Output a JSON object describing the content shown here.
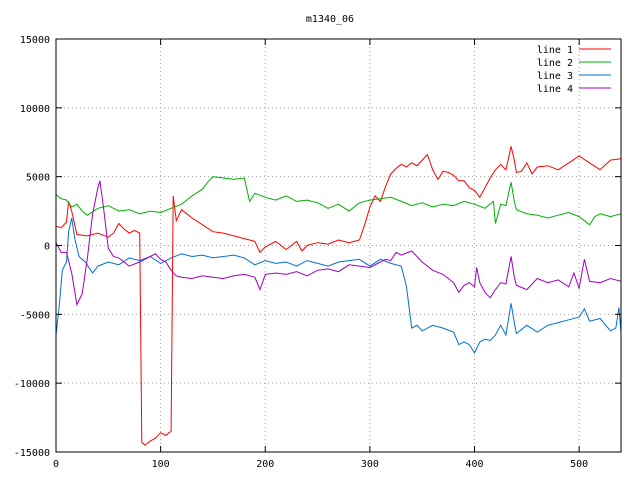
{
  "chart_data": {
    "type": "line",
    "title": "m1340_06",
    "xlabel": "",
    "ylabel": "",
    "xlim": [
      0,
      540
    ],
    "ylim": [
      -15000,
      15000
    ],
    "x_ticks": [
      0,
      100,
      200,
      300,
      400,
      500
    ],
    "y_ticks": [
      -15000,
      -10000,
      -5000,
      0,
      5000,
      10000,
      15000
    ],
    "grid": true,
    "legend_position": "top-right",
    "series": [
      {
        "name": "line 1",
        "color": "#ff0000",
        "points": [
          [
            0,
            1400
          ],
          [
            5,
            1300
          ],
          [
            10,
            1700
          ],
          [
            12,
            3200
          ],
          [
            15,
            2500
          ],
          [
            20,
            800
          ],
          [
            30,
            700
          ],
          [
            40,
            900
          ],
          [
            50,
            600
          ],
          [
            55,
            900
          ],
          [
            60,
            1600
          ],
          [
            65,
            1200
          ],
          [
            70,
            900
          ],
          [
            75,
            1100
          ],
          [
            80,
            900
          ],
          [
            82,
            -14300
          ],
          [
            85,
            -14500
          ],
          [
            90,
            -14200
          ],
          [
            95,
            -14000
          ],
          [
            100,
            -13600
          ],
          [
            105,
            -13800
          ],
          [
            108,
            -13600
          ],
          [
            110,
            -13500
          ],
          [
            112,
            3600
          ],
          [
            115,
            1800
          ],
          [
            120,
            2600
          ],
          [
            125,
            2300
          ],
          [
            130,
            2000
          ],
          [
            140,
            1500
          ],
          [
            150,
            1000
          ],
          [
            160,
            900
          ],
          [
            170,
            700
          ],
          [
            180,
            500
          ],
          [
            190,
            300
          ],
          [
            195,
            -500
          ],
          [
            200,
            -100
          ],
          [
            210,
            300
          ],
          [
            220,
            -300
          ],
          [
            230,
            300
          ],
          [
            235,
            -400
          ],
          [
            240,
            0
          ],
          [
            250,
            200
          ],
          [
            260,
            100
          ],
          [
            270,
            400
          ],
          [
            280,
            200
          ],
          [
            290,
            400
          ],
          [
            295,
            1500
          ],
          [
            300,
            2800
          ],
          [
            305,
            3600
          ],
          [
            310,
            3200
          ],
          [
            315,
            4300
          ],
          [
            320,
            5200
          ],
          [
            325,
            5600
          ],
          [
            330,
            5900
          ],
          [
            335,
            5700
          ],
          [
            340,
            6000
          ],
          [
            345,
            5800
          ],
          [
            350,
            6200
          ],
          [
            355,
            6600
          ],
          [
            360,
            5500
          ],
          [
            365,
            4800
          ],
          [
            370,
            5400
          ],
          [
            375,
            5300
          ],
          [
            380,
            5100
          ],
          [
            385,
            4700
          ],
          [
            390,
            4700
          ],
          [
            395,
            4200
          ],
          [
            400,
            4000
          ],
          [
            405,
            3500
          ],
          [
            410,
            4200
          ],
          [
            415,
            4900
          ],
          [
            420,
            5500
          ],
          [
            425,
            5900
          ],
          [
            430,
            5500
          ],
          [
            435,
            7200
          ],
          [
            438,
            6200
          ],
          [
            440,
            5300
          ],
          [
            445,
            5400
          ],
          [
            450,
            6000
          ],
          [
            455,
            5200
          ],
          [
            460,
            5700
          ],
          [
            470,
            5800
          ],
          [
            480,
            5500
          ],
          [
            490,
            6000
          ],
          [
            500,
            6500
          ],
          [
            510,
            6000
          ],
          [
            520,
            5500
          ],
          [
            530,
            6200
          ],
          [
            540,
            6300
          ]
        ]
      },
      {
        "name": "line 2",
        "color": "#00b000",
        "points": [
          [
            0,
            3700
          ],
          [
            5,
            3400
          ],
          [
            10,
            3300
          ],
          [
            15,
            2800
          ],
          [
            20,
            3000
          ],
          [
            25,
            2500
          ],
          [
            30,
            2200
          ],
          [
            40,
            2700
          ],
          [
            50,
            2900
          ],
          [
            60,
            2500
          ],
          [
            70,
            2600
          ],
          [
            80,
            2300
          ],
          [
            90,
            2500
          ],
          [
            100,
            2400
          ],
          [
            110,
            2700
          ],
          [
            120,
            3000
          ],
          [
            130,
            3600
          ],
          [
            140,
            4100
          ],
          [
            145,
            4600
          ],
          [
            150,
            5000
          ],
          [
            160,
            4900
          ],
          [
            170,
            4800
          ],
          [
            180,
            4900
          ],
          [
            185,
            3200
          ],
          [
            190,
            3800
          ],
          [
            200,
            3500
          ],
          [
            210,
            3300
          ],
          [
            220,
            3600
          ],
          [
            230,
            3200
          ],
          [
            240,
            3300
          ],
          [
            250,
            3100
          ],
          [
            260,
            2700
          ],
          [
            270,
            3000
          ],
          [
            280,
            2500
          ],
          [
            290,
            3100
          ],
          [
            300,
            3300
          ],
          [
            310,
            3400
          ],
          [
            320,
            3500
          ],
          [
            330,
            3200
          ],
          [
            340,
            2900
          ],
          [
            350,
            3100
          ],
          [
            360,
            2800
          ],
          [
            370,
            3000
          ],
          [
            380,
            2900
          ],
          [
            390,
            3200
          ],
          [
            400,
            3000
          ],
          [
            410,
            2700
          ],
          [
            418,
            3200
          ],
          [
            420,
            1600
          ],
          [
            425,
            3000
          ],
          [
            430,
            2900
          ],
          [
            435,
            4600
          ],
          [
            438,
            3200
          ],
          [
            440,
            2600
          ],
          [
            450,
            2300
          ],
          [
            460,
            2200
          ],
          [
            470,
            2000
          ],
          [
            480,
            2200
          ],
          [
            490,
            2400
          ],
          [
            500,
            2100
          ],
          [
            505,
            1800
          ],
          [
            510,
            1500
          ],
          [
            515,
            2100
          ],
          [
            520,
            2300
          ],
          [
            530,
            2100
          ],
          [
            540,
            2300
          ]
        ]
      },
      {
        "name": "line 3",
        "color": "#0070d0",
        "points": [
          [
            0,
            -6500
          ],
          [
            3,
            -4500
          ],
          [
            6,
            -1800
          ],
          [
            10,
            -1200
          ],
          [
            12,
            1000
          ],
          [
            15,
            2000
          ],
          [
            18,
            500
          ],
          [
            22,
            -800
          ],
          [
            28,
            -1200
          ],
          [
            35,
            -2000
          ],
          [
            40,
            -1500
          ],
          [
            50,
            -1200
          ],
          [
            60,
            -1400
          ],
          [
            70,
            -900
          ],
          [
            80,
            -1100
          ],
          [
            90,
            -800
          ],
          [
            100,
            -1300
          ],
          [
            110,
            -900
          ],
          [
            120,
            -600
          ],
          [
            130,
            -800
          ],
          [
            140,
            -700
          ],
          [
            150,
            -900
          ],
          [
            160,
            -800
          ],
          [
            170,
            -700
          ],
          [
            180,
            -900
          ],
          [
            190,
            -1400
          ],
          [
            200,
            -1100
          ],
          [
            210,
            -1300
          ],
          [
            220,
            -1200
          ],
          [
            230,
            -1500
          ],
          [
            240,
            -1100
          ],
          [
            250,
            -1300
          ],
          [
            260,
            -1500
          ],
          [
            270,
            -1200
          ],
          [
            280,
            -1100
          ],
          [
            290,
            -1000
          ],
          [
            300,
            -1500
          ],
          [
            310,
            -1000
          ],
          [
            320,
            -1300
          ],
          [
            330,
            -1500
          ],
          [
            335,
            -3000
          ],
          [
            340,
            -6000
          ],
          [
            345,
            -5800
          ],
          [
            350,
            -6200
          ],
          [
            360,
            -5800
          ],
          [
            370,
            -6000
          ],
          [
            380,
            -6300
          ],
          [
            385,
            -7200
          ],
          [
            390,
            -7000
          ],
          [
            395,
            -7200
          ],
          [
            400,
            -7800
          ],
          [
            405,
            -7000
          ],
          [
            410,
            -6800
          ],
          [
            415,
            -6900
          ],
          [
            420,
            -6500
          ],
          [
            425,
            -5800
          ],
          [
            430,
            -6500
          ],
          [
            435,
            -4200
          ],
          [
            438,
            -5600
          ],
          [
            440,
            -6400
          ],
          [
            450,
            -5800
          ],
          [
            460,
            -6300
          ],
          [
            470,
            -5800
          ],
          [
            480,
            -5600
          ],
          [
            490,
            -5400
          ],
          [
            500,
            -5200
          ],
          [
            505,
            -4600
          ],
          [
            510,
            -5500
          ],
          [
            520,
            -5300
          ],
          [
            530,
            -6200
          ],
          [
            535,
            -6000
          ],
          [
            538,
            -4500
          ],
          [
            540,
            -6300
          ]
        ]
      },
      {
        "name": "line 4",
        "color": "#a000c0",
        "points": [
          [
            0,
            200
          ],
          [
            5,
            -500
          ],
          [
            10,
            -500
          ],
          [
            15,
            -2000
          ],
          [
            20,
            -4300
          ],
          [
            25,
            -3500
          ],
          [
            30,
            -900
          ],
          [
            35,
            2300
          ],
          [
            40,
            4200
          ],
          [
            42,
            4700
          ],
          [
            45,
            3000
          ],
          [
            50,
            -200
          ],
          [
            55,
            -800
          ],
          [
            60,
            -900
          ],
          [
            70,
            -1500
          ],
          [
            80,
            -1200
          ],
          [
            90,
            -800
          ],
          [
            95,
            -600
          ],
          [
            100,
            -1000
          ],
          [
            105,
            -1200
          ],
          [
            110,
            -1800
          ],
          [
            115,
            -2200
          ],
          [
            120,
            -2300
          ],
          [
            130,
            -2400
          ],
          [
            140,
            -2200
          ],
          [
            150,
            -2300
          ],
          [
            160,
            -2400
          ],
          [
            170,
            -2200
          ],
          [
            180,
            -2100
          ],
          [
            190,
            -2300
          ],
          [
            195,
            -3200
          ],
          [
            200,
            -2100
          ],
          [
            210,
            -2000
          ],
          [
            220,
            -2100
          ],
          [
            230,
            -1900
          ],
          [
            240,
            -2200
          ],
          [
            250,
            -1800
          ],
          [
            260,
            -1700
          ],
          [
            270,
            -1900
          ],
          [
            280,
            -1400
          ],
          [
            290,
            -1500
          ],
          [
            300,
            -1600
          ],
          [
            310,
            -1200
          ],
          [
            315,
            -1000
          ],
          [
            320,
            -1100
          ],
          [
            325,
            -500
          ],
          [
            330,
            -700
          ],
          [
            340,
            -400
          ],
          [
            350,
            -1200
          ],
          [
            360,
            -1800
          ],
          [
            370,
            -2100
          ],
          [
            380,
            -2700
          ],
          [
            385,
            -3400
          ],
          [
            390,
            -2900
          ],
          [
            395,
            -2700
          ],
          [
            400,
            -3000
          ],
          [
            402,
            -1600
          ],
          [
            405,
            -2700
          ],
          [
            410,
            -3400
          ],
          [
            415,
            -3800
          ],
          [
            420,
            -3200
          ],
          [
            425,
            -2700
          ],
          [
            430,
            -2800
          ],
          [
            435,
            -800
          ],
          [
            438,
            -2300
          ],
          [
            440,
            -2900
          ],
          [
            450,
            -3200
          ],
          [
            460,
            -2400
          ],
          [
            470,
            -2700
          ],
          [
            480,
            -2500
          ],
          [
            490,
            -3000
          ],
          [
            495,
            -2000
          ],
          [
            500,
            -3100
          ],
          [
            505,
            -1000
          ],
          [
            510,
            -2600
          ],
          [
            520,
            -2700
          ],
          [
            530,
            -2400
          ],
          [
            540,
            -2600
          ]
        ]
      }
    ]
  }
}
